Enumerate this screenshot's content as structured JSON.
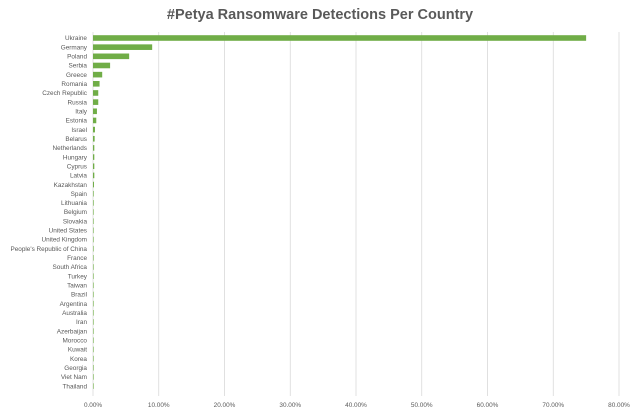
{
  "chart_data": {
    "type": "bar",
    "orientation": "horizontal",
    "title": "#Petya Ransomware Detections Per Country",
    "xlabel": "",
    "ylabel": "",
    "xlim": [
      0,
      80
    ],
    "x_ticks": [
      "0.00%",
      "10.00%",
      "20.00%",
      "30.00%",
      "40.00%",
      "50.00%",
      "60.00%",
      "70.00%",
      "80.00%"
    ],
    "grid": true,
    "legend": "none",
    "bar_color": "#70AD47",
    "categories": [
      "Ukraine",
      "Germany",
      "Poland",
      "Serbia",
      "Greece",
      "Romania",
      "Czech Republic",
      "Russia",
      "Italy",
      "Estonia",
      "Israel",
      "Belarus",
      "Netherlands",
      "Hungary",
      "Cyprus",
      "Latvia",
      "Kazakhstan",
      "Spain",
      "Lithuania",
      "Belgium",
      "Slovakia",
      "United States",
      "United Kingdom",
      "People's Republic of China",
      "France",
      "South Africa",
      "Turkey",
      "Taiwan",
      "Brazil",
      "Argentina",
      "Australia",
      "Iran",
      "Azerbaijan",
      "Morocco",
      "Kuwait",
      "Korea",
      "Georgia",
      "Viet Nam",
      "Thailand"
    ],
    "values": [
      75.0,
      9.0,
      5.5,
      2.6,
      1.4,
      1.0,
      0.8,
      0.8,
      0.6,
      0.5,
      0.3,
      0.25,
      0.2,
      0.2,
      0.2,
      0.2,
      0.15,
      0.1,
      0.1,
      0.08,
      0.08,
      0.06,
      0.06,
      0.05,
      0.05,
      0.04,
      0.04,
      0.04,
      0.03,
      0.03,
      0.03,
      0.03,
      0.02,
      0.02,
      0.02,
      0.02,
      0.02,
      0.02,
      0.02
    ]
  }
}
